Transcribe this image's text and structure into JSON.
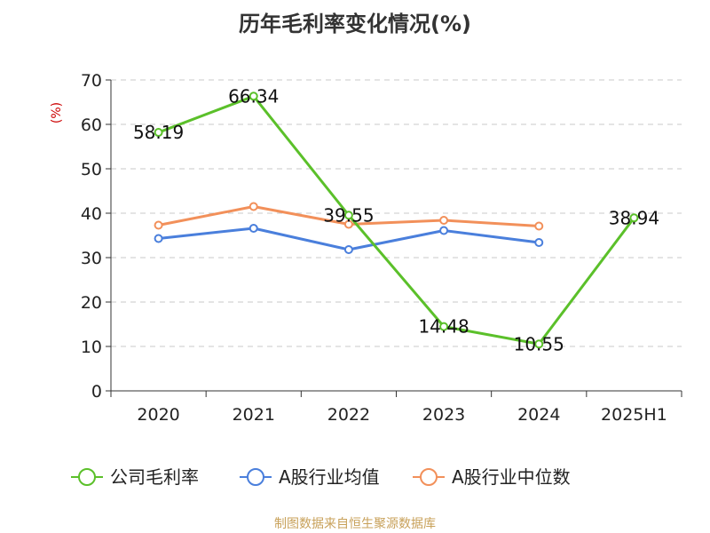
{
  "chart_data": {
    "type": "line",
    "title": "历年毛利率变化情况(%)",
    "ylabel": "(%)",
    "xlabel": "",
    "categories": [
      "2020",
      "2021",
      "2022",
      "2023",
      "2024",
      "2025H1"
    ],
    "ylim": [
      0,
      70
    ],
    "yticks": [
      0,
      10,
      20,
      30,
      40,
      50,
      60,
      70
    ],
    "grid": true,
    "legend": "bottom",
    "series": [
      {
        "name": "公司毛利率",
        "color": "#5bc02a",
        "values": [
          58.19,
          66.34,
          39.55,
          14.48,
          10.55,
          38.94
        ],
        "labels": [
          "58.19",
          "66.34",
          "39.55",
          "14.48",
          "10.55",
          "38.94"
        ]
      },
      {
        "name": "A股行业均值",
        "color": "#4a7fdc",
        "values": [
          34.3,
          36.6,
          31.8,
          36.1,
          33.4,
          null
        ]
      },
      {
        "name": "A股行业中位数",
        "color": "#f2905a",
        "values": [
          37.3,
          41.5,
          37.5,
          38.4,
          37.1,
          null
        ]
      }
    ]
  },
  "source": "制图数据来自恒生聚源数据库"
}
